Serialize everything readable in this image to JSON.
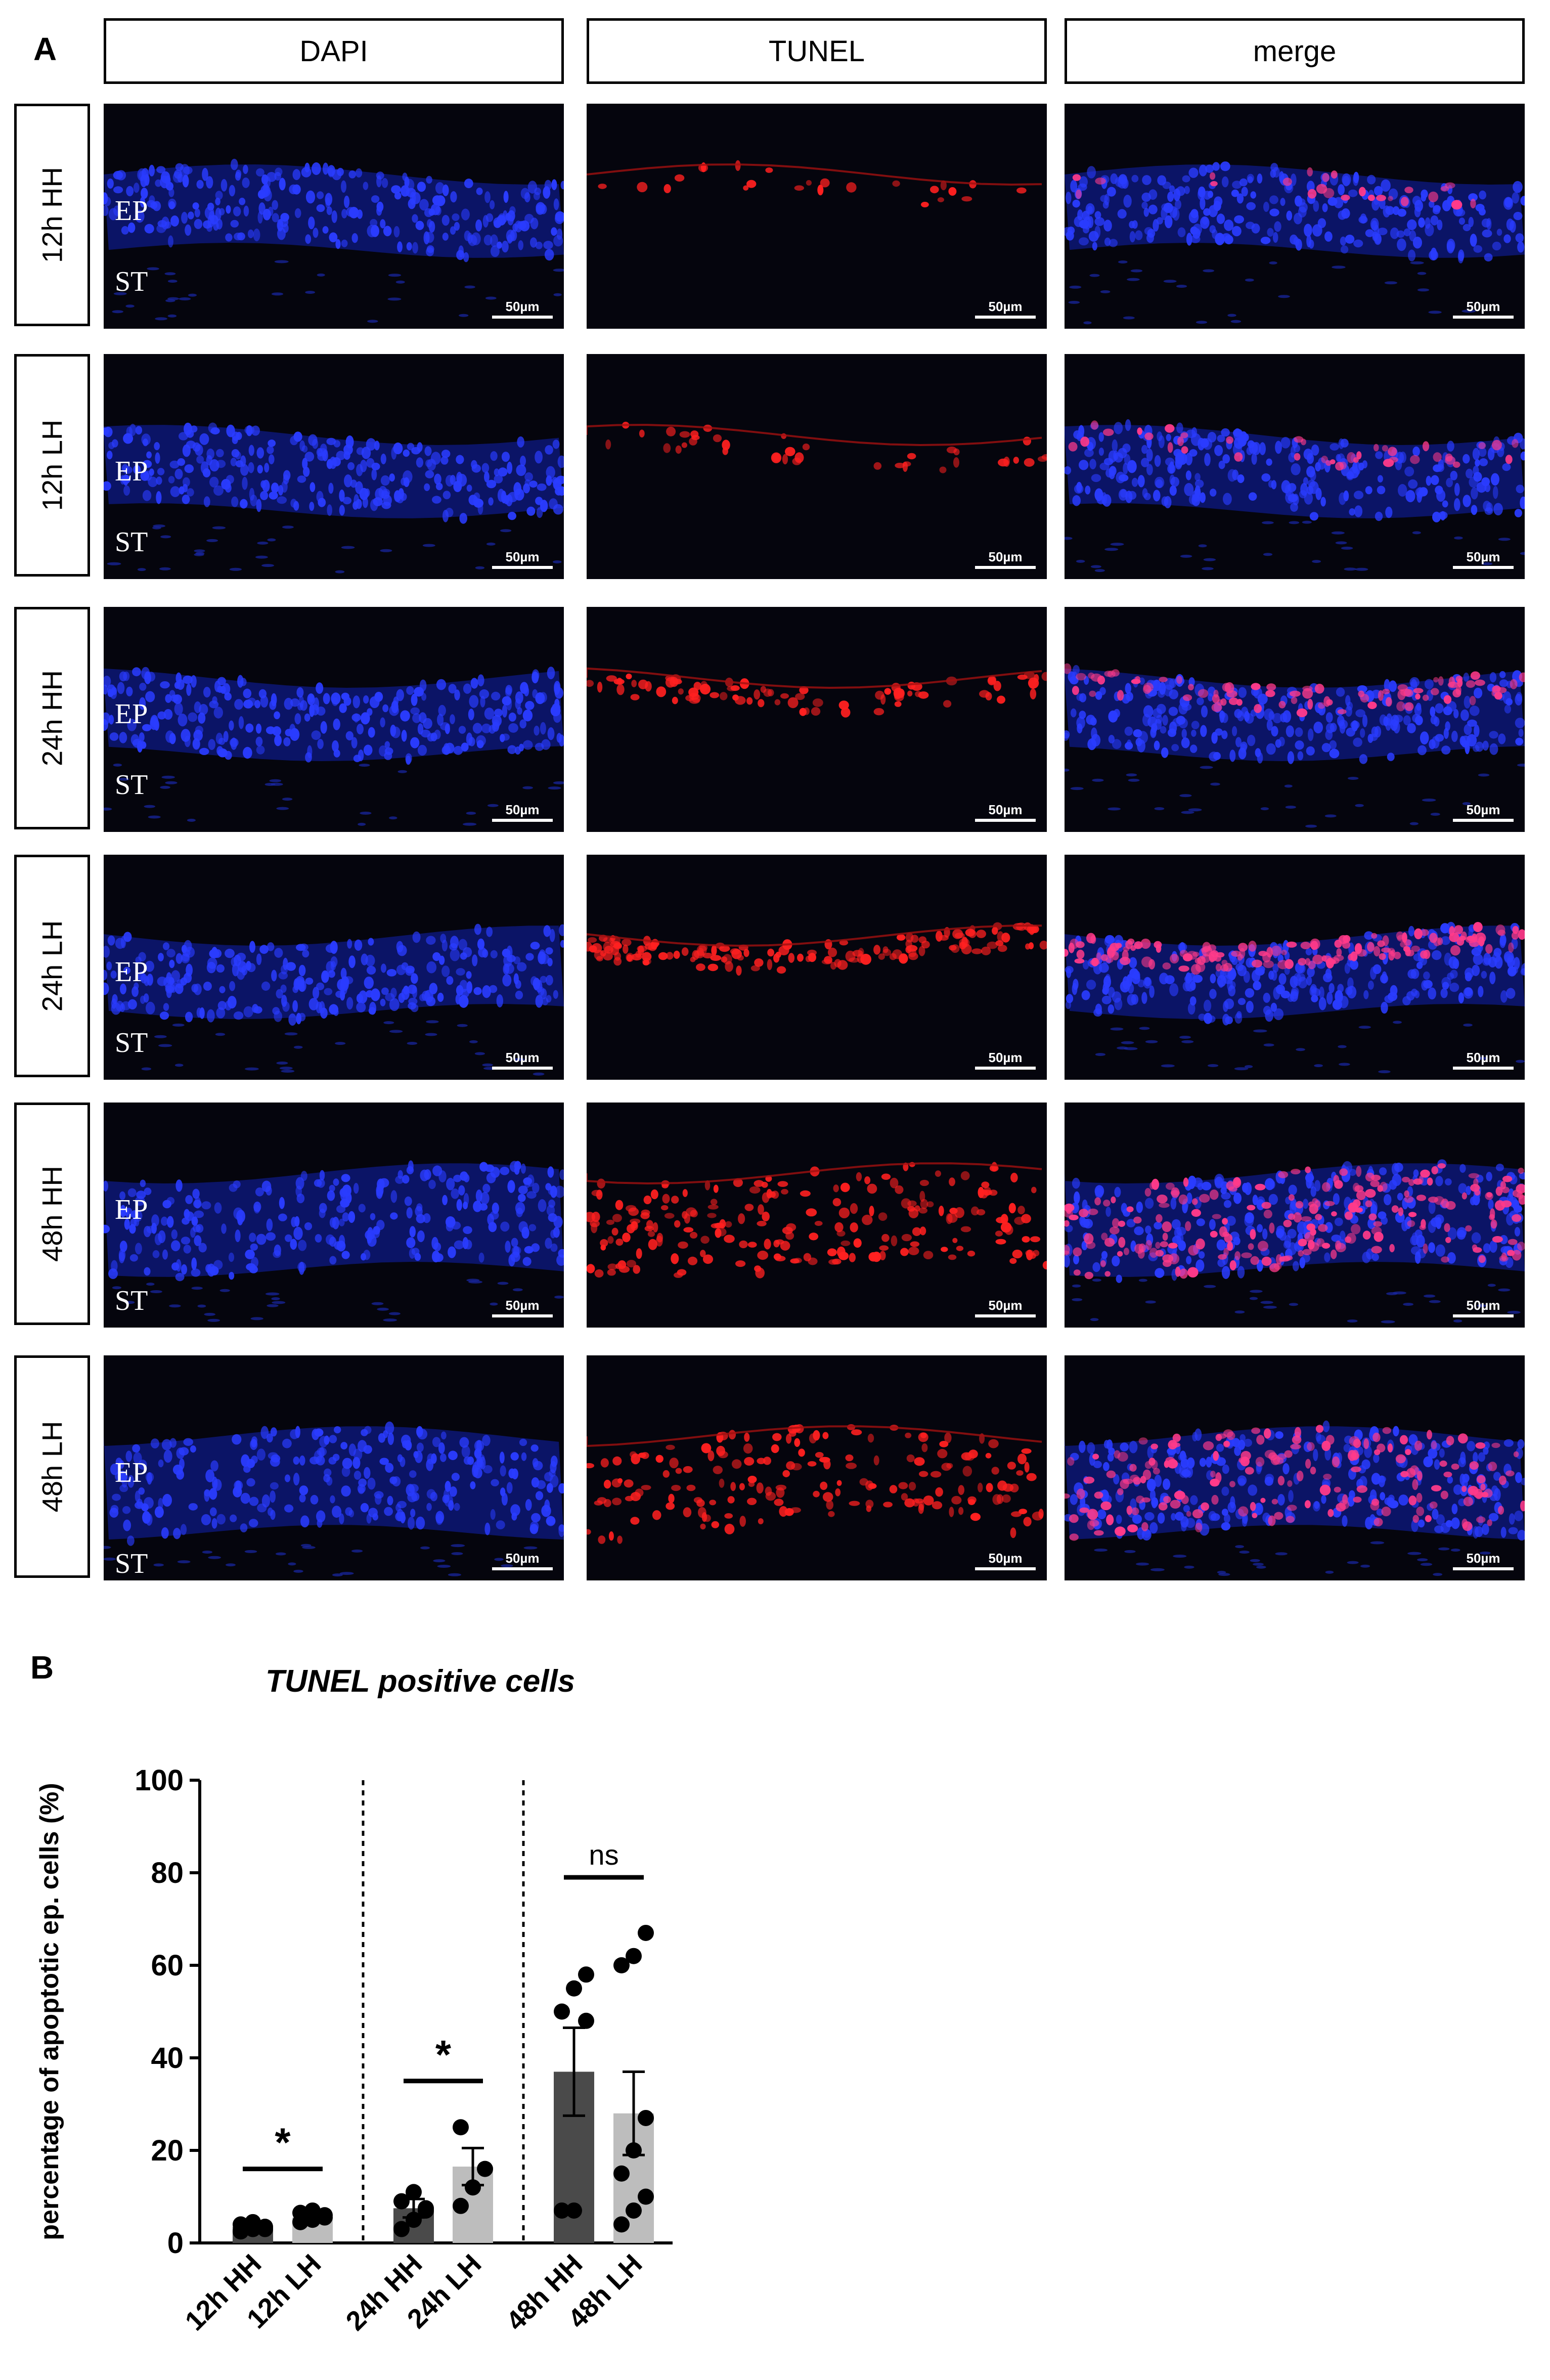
{
  "figure": {
    "panel_a_label": "A",
    "panel_b_label": "B",
    "columns": [
      "DAPI",
      "TUNEL",
      "merge"
    ],
    "rows": [
      "12h HH",
      "12h LH",
      "24h HH",
      "24h LH",
      "48h HH",
      "48h LH"
    ],
    "zone_labels": {
      "epithelium": "EP",
      "stroma": "ST"
    },
    "scale_bar": "50µm",
    "channel_colors": {
      "dapi": "#2a3cff",
      "tunel": "#ff2020",
      "background": "#05050d"
    }
  },
  "chart_data": {
    "type": "bar",
    "title": "TUNEL positive cells",
    "ylabel": "percentage of apoptotic ep. cells (%)",
    "xlabel": "",
    "ylim": [
      0,
      100
    ],
    "yticks": [
      0,
      20,
      40,
      60,
      80,
      100
    ],
    "categories": [
      "12h HH",
      "12h LH",
      "24h HH",
      "24h LH",
      "48h HH",
      "48h LH"
    ],
    "values": [
      3.5,
      5.5,
      7.5,
      16.5,
      37,
      28
    ],
    "errors": [
      0.8,
      0.8,
      2,
      4,
      9.5,
      9
    ],
    "bar_colors": [
      "#4a4a4a",
      "#bdbdbd",
      "#4a4a4a",
      "#bdbdbd",
      "#4a4a4a",
      "#bdbdbd"
    ],
    "points": [
      [
        2.5,
        3,
        3.5,
        4,
        4.5,
        3,
        2.5
      ],
      [
        4.5,
        5,
        6,
        6.5,
        7,
        5.5
      ],
      [
        3,
        5,
        7,
        9,
        11,
        7.5
      ],
      [
        8,
        12,
        16,
        25
      ],
      [
        7,
        7,
        48,
        50,
        55,
        58
      ],
      [
        4,
        7,
        10,
        15,
        20,
        27,
        60,
        62,
        67
      ]
    ],
    "comparisons": [
      {
        "groups": [
          0,
          1
        ],
        "label": "*",
        "y": 16
      },
      {
        "groups": [
          2,
          3
        ],
        "label": "*",
        "y": 35
      },
      {
        "groups": [
          4,
          5
        ],
        "label": "ns",
        "y": 79
      }
    ],
    "separators_after": [
      1,
      3
    ]
  }
}
